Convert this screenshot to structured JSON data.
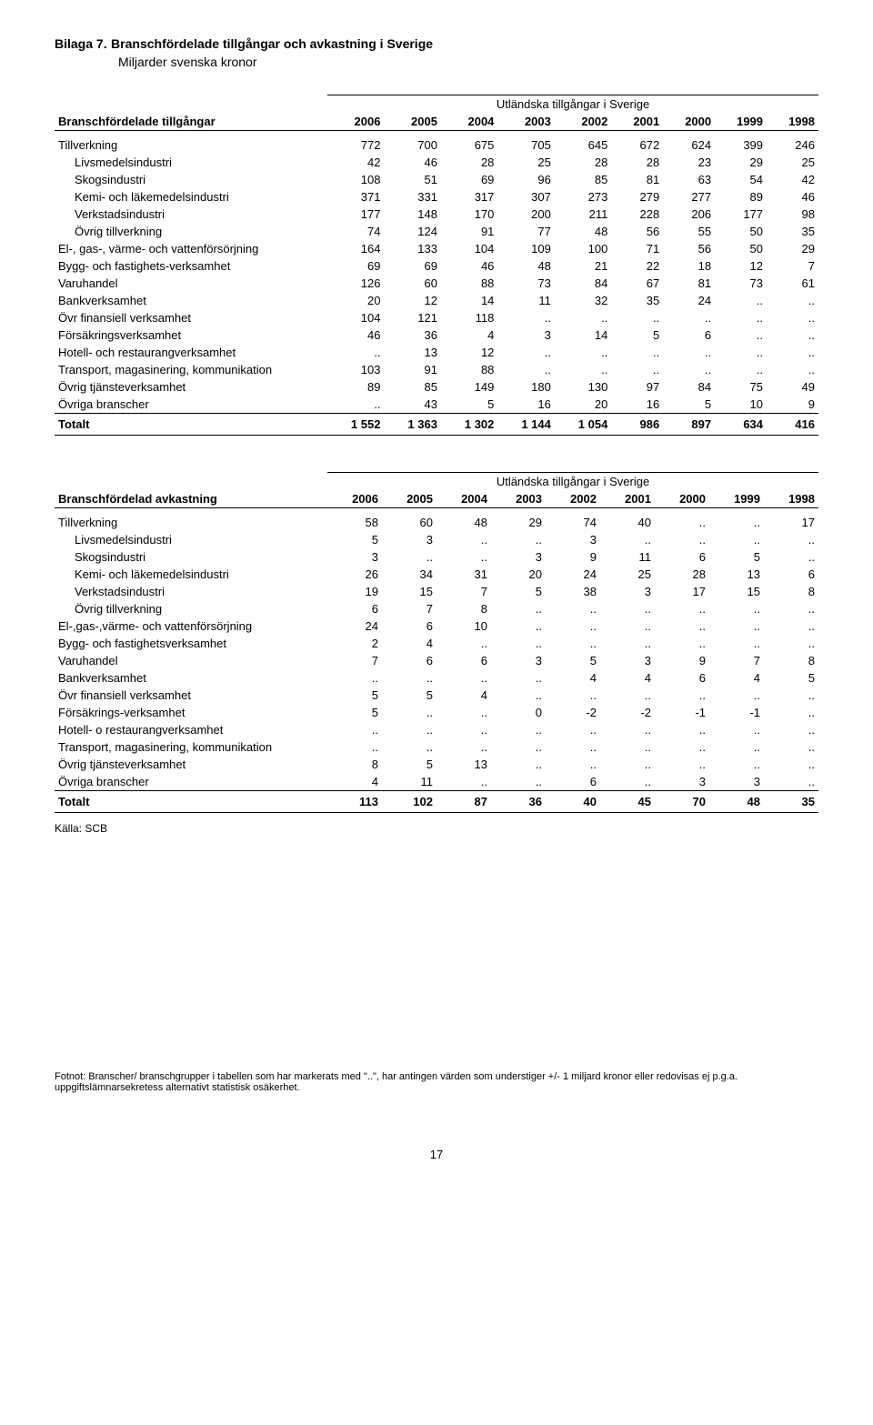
{
  "title_label": "Bilaga 7.",
  "title_text": "Branschfördelade tillgångar och avkastning i Sverige",
  "subtitle": "Miljarder svenska kronor",
  "years": [
    "2006",
    "2005",
    "2004",
    "2003",
    "2002",
    "2001",
    "2000",
    "1999",
    "1998"
  ],
  "table1": {
    "super_header": "Utländska tillgångar i Sverige",
    "row_header": "Branschfördelade tillgångar",
    "rows": [
      {
        "label": "Tillverkning",
        "indent": false,
        "v": [
          "772",
          "700",
          "675",
          "705",
          "645",
          "672",
          "624",
          "399",
          "246"
        ]
      },
      {
        "label": "Livsmedelsindustri",
        "indent": true,
        "v": [
          "42",
          "46",
          "28",
          "25",
          "28",
          "28",
          "23",
          "29",
          "25"
        ]
      },
      {
        "label": "Skogsindustri",
        "indent": true,
        "v": [
          "108",
          "51",
          "69",
          "96",
          "85",
          "81",
          "63",
          "54",
          "42"
        ]
      },
      {
        "label": "Kemi- och läkemedelsindustri",
        "indent": true,
        "v": [
          "371",
          "331",
          "317",
          "307",
          "273",
          "279",
          "277",
          "89",
          "46"
        ]
      },
      {
        "label": "Verkstadsindustri",
        "indent": true,
        "v": [
          "177",
          "148",
          "170",
          "200",
          "211",
          "228",
          "206",
          "177",
          "98"
        ]
      },
      {
        "label": "Övrig tillverkning",
        "indent": true,
        "v": [
          "74",
          "124",
          "91",
          "77",
          "48",
          "56",
          "55",
          "50",
          "35"
        ]
      },
      {
        "label": "El-, gas-, värme- och vattenförsörjning",
        "indent": false,
        "v": [
          "164",
          "133",
          "104",
          "109",
          "100",
          "71",
          "56",
          "50",
          "29"
        ]
      },
      {
        "label": "Bygg- och fastighets-verksamhet",
        "indent": false,
        "v": [
          "69",
          "69",
          "46",
          "48",
          "21",
          "22",
          "18",
          "12",
          "7"
        ]
      },
      {
        "label": "Varuhandel",
        "indent": false,
        "v": [
          "126",
          "60",
          "88",
          "73",
          "84",
          "67",
          "81",
          "73",
          "61"
        ]
      },
      {
        "label": "Bankverksamhet",
        "indent": false,
        "v": [
          "20",
          "12",
          "14",
          "11",
          "32",
          "35",
          "24",
          "..",
          ".."
        ]
      },
      {
        "label": "Övr finansiell verksamhet",
        "indent": false,
        "v": [
          "104",
          "121",
          "118",
          "..",
          "..",
          "..",
          "..",
          "..",
          ".."
        ]
      },
      {
        "label": "Försäkringsverksamhet",
        "indent": false,
        "v": [
          "46",
          "36",
          "4",
          "3",
          "14",
          "5",
          "6",
          "..",
          ".."
        ]
      },
      {
        "label": "Hotell- och restaurangverksamhet",
        "indent": false,
        "v": [
          "..",
          "13",
          "12",
          "..",
          "..",
          "..",
          "..",
          "..",
          ".."
        ]
      },
      {
        "label": "Transport, magasinering, kommunikation",
        "indent": false,
        "v": [
          "103",
          "91",
          "88",
          "..",
          "..",
          "..",
          "..",
          "..",
          ".."
        ]
      },
      {
        "label": "Övrig tjänsteverksamhet",
        "indent": false,
        "v": [
          "89",
          "85",
          "149",
          "180",
          "130",
          "97",
          "84",
          "75",
          "49"
        ]
      },
      {
        "label": "Övriga branscher",
        "indent": false,
        "v": [
          "..",
          "43",
          "5",
          "16",
          "20",
          "16",
          "5",
          "10",
          "9"
        ]
      }
    ],
    "totalt_label": "Totalt",
    "totalt_values": [
      "1 552",
      "1 363",
      "1 302",
      "1 144",
      "1 054",
      "986",
      "897",
      "634",
      "416"
    ]
  },
  "table2": {
    "super_header": "Utländska tillgångar i Sverige",
    "row_header": "Branschfördelad avkastning",
    "rows": [
      {
        "label": "Tillverkning",
        "indent": false,
        "v": [
          "58",
          "60",
          "48",
          "29",
          "74",
          "40",
          "..",
          "..",
          "17"
        ]
      },
      {
        "label": "Livsmedelsindustri",
        "indent": true,
        "v": [
          "5",
          "3",
          "..",
          "..",
          "3",
          "..",
          "..",
          "..",
          ".."
        ]
      },
      {
        "label": "Skogsindustri",
        "indent": true,
        "v": [
          "3",
          "..",
          "..",
          "3",
          "9",
          "11",
          "6",
          "5",
          ".."
        ]
      },
      {
        "label": "Kemi- och läkemedelsindustri",
        "indent": true,
        "v": [
          "26",
          "34",
          "31",
          "20",
          "24",
          "25",
          "28",
          "13",
          "6"
        ]
      },
      {
        "label": "Verkstadsindustri",
        "indent": true,
        "v": [
          "19",
          "15",
          "7",
          "5",
          "38",
          "3",
          "17",
          "15",
          "8"
        ]
      },
      {
        "label": "Övrig tillverkning",
        "indent": true,
        "v": [
          "6",
          "7",
          "8",
          "..",
          "..",
          "..",
          "..",
          "..",
          ".."
        ]
      },
      {
        "label": "El-,gas-,värme- och vattenförsörjning",
        "indent": false,
        "v": [
          "24",
          "6",
          "10",
          "..",
          "..",
          "..",
          "..",
          "..",
          ".."
        ]
      },
      {
        "label": "Bygg- och fastighetsverksamhet",
        "indent": false,
        "v": [
          "2",
          "4",
          "..",
          "..",
          "..",
          "..",
          "..",
          "..",
          ".."
        ]
      },
      {
        "label": "Varuhandel",
        "indent": false,
        "v": [
          "7",
          "6",
          "6",
          "3",
          "5",
          "3",
          "9",
          "7",
          "8"
        ]
      },
      {
        "label": "Bankverksamhet",
        "indent": false,
        "v": [
          "..",
          "..",
          "..",
          "..",
          "4",
          "4",
          "6",
          "4",
          "5"
        ]
      },
      {
        "label": "Övr finansiell verksamhet",
        "indent": false,
        "v": [
          "5",
          "5",
          "4",
          "..",
          "..",
          "..",
          "..",
          "..",
          ".."
        ]
      },
      {
        "label": "Försäkrings-verksamhet",
        "indent": false,
        "v": [
          "5",
          "..",
          "..",
          "0",
          "-2",
          "-2",
          "-1",
          "-1",
          ".."
        ]
      },
      {
        "label": "Hotell- o restaurangverksamhet",
        "indent": false,
        "v": [
          "..",
          "..",
          "..",
          "..",
          "..",
          "..",
          "..",
          "..",
          ".."
        ]
      },
      {
        "label": "Transport, magasinering, kommunikation",
        "indent": false,
        "v": [
          "..",
          "..",
          "..",
          "..",
          "..",
          "..",
          "..",
          "..",
          ".."
        ]
      },
      {
        "label": "Övrig tjänsteverksamhet",
        "indent": false,
        "v": [
          "8",
          "5",
          "13",
          "..",
          "..",
          "..",
          "..",
          "..",
          ".."
        ]
      },
      {
        "label": "Övriga branscher",
        "indent": false,
        "v": [
          "4",
          "11",
          "..",
          "..",
          "6",
          "..",
          "3",
          "3",
          ".."
        ]
      }
    ],
    "totalt_label": "Totalt",
    "totalt_values": [
      "113",
      "102",
      "87",
      "36",
      "40",
      "45",
      "70",
      "48",
      "35"
    ]
  },
  "source": "Källa: SCB",
  "footnote": "Fotnot: Branscher/ branschgrupper i tabellen som har markerats med \"..\", har antingen värden som understiger +/- 1 miljard kronor eller redovisas ej p.g.a. uppgiftslämnarsekretess alternativt statistisk osäkerhet.",
  "pagenum": "17"
}
